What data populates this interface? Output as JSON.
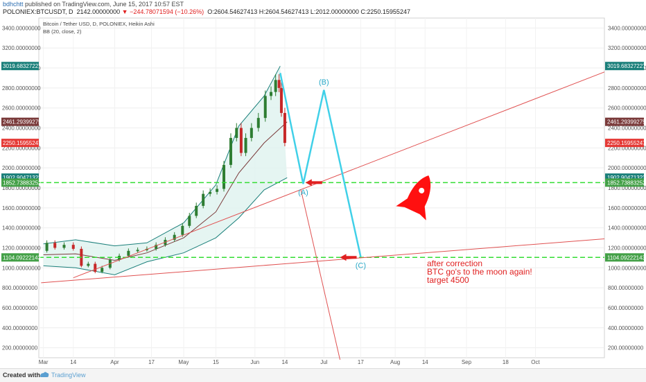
{
  "header": {
    "author": "bdhchtt",
    "published_text": "published on TradingView.com, June 15, 2017 10:57 EST",
    "symbol": "POLONIEX:BTCUSDT, D",
    "price": "2142.00000000",
    "change_arrow": "▼",
    "change": "−244.78071594 (−10.26%)",
    "ohlc": "O:2604.54627413 H:2604.54627413 L:2012.00000000 C:2250.15955247"
  },
  "chart_titles": {
    "line1": "Bitcoin / Tether USD, D, POLONIEX, Heikin Ashi",
    "line2": "BB (20, close, 2)"
  },
  "footer": {
    "created_with": "Created with",
    "brand": "TradingView"
  },
  "colors": {
    "up_candle": "#2e7d32",
    "down_candle": "#c62828",
    "band_fill": "#dff3ef",
    "band_line": "#1a7f7a",
    "basis_line": "#7a3a3a",
    "wave_line": "#40d0e8",
    "trend_line": "#e05050",
    "support_line": "#33dd33",
    "rocket": "#ff1010",
    "arrow": "#e02020"
  },
  "chart_data": {
    "type": "candlestick",
    "series_type": "Heikin Ashi",
    "indicator": "Bollinger Bands (20, close, 2)",
    "x_axis": {
      "tick_labels": [
        "Mar",
        "14",
        "Apr",
        "17",
        "May",
        "15",
        "Jun",
        "14",
        "Jul",
        "17",
        "Aug",
        "14",
        "Sep",
        "18",
        "Oct"
      ],
      "tick_dates": [
        "2017-03-01",
        "2017-03-14",
        "2017-04-01",
        "2017-04-17",
        "2017-05-01",
        "2017-05-15",
        "2017-06-01",
        "2017-06-14",
        "2017-07-01",
        "2017-07-17",
        "2017-08-01",
        "2017-08-14",
        "2017-09-01",
        "2017-09-18",
        "2017-10-01"
      ]
    },
    "y_axis": {
      "ylim": [
        100,
        3500
      ],
      "tick_labels": [
        "3400.00000000",
        "3200.00000000",
        "3000.00000000",
        "2800.00000000",
        "2600.00000000",
        "2400.00000000",
        "2200.00000000",
        "2000.00000000",
        "1800.00000000",
        "1600.00000000",
        "1400.00000000",
        "1200.00000000",
        "1000.00000000",
        "800.00000000",
        "600.00000000",
        "400.00000000",
        "200.00000000"
      ],
      "tick_values": [
        3400,
        3200,
        3000,
        2800,
        2600,
        2400,
        2200,
        2000,
        1800,
        1600,
        1400,
        1200,
        1000,
        800,
        600,
        400,
        200
      ]
    },
    "price_tags": [
      {
        "label": "3019.68327227",
        "value": 3019.68327227,
        "color": "#1a7f7a"
      },
      {
        "label": "2461.29399275",
        "value": 2461.29399275,
        "color": "#7a3a3a"
      },
      {
        "label": "2250.15955247",
        "value": 2250.15955247,
        "color": "#e53935"
      },
      {
        "label": "1902.90471323",
        "value": 1902.90471323,
        "color": "#1a7f7a"
      },
      {
        "label": "1852.73883252",
        "value": 1852.73883252,
        "color": "#43a047"
      },
      {
        "label": "1104.09222143",
        "value": 1104.09222143,
        "color": "#43a047"
      }
    ],
    "close_path": [
      [
        "2017-03-01",
        1170
      ],
      [
        "2017-03-04",
        1250
      ],
      [
        "2017-03-08",
        1200
      ],
      [
        "2017-03-12",
        1230
      ],
      [
        "2017-03-16",
        1190
      ],
      [
        "2017-03-19",
        1020
      ],
      [
        "2017-03-22",
        1040
      ],
      [
        "2017-03-25",
        960
      ],
      [
        "2017-03-28",
        1000
      ],
      [
        "2017-04-01",
        1080
      ],
      [
        "2017-04-05",
        1120
      ],
      [
        "2017-04-09",
        1170
      ],
      [
        "2017-04-13",
        1180
      ],
      [
        "2017-04-17",
        1190
      ],
      [
        "2017-04-21",
        1230
      ],
      [
        "2017-04-25",
        1280
      ],
      [
        "2017-04-29",
        1330
      ],
      [
        "2017-05-02",
        1420
      ],
      [
        "2017-05-05",
        1520
      ],
      [
        "2017-05-08",
        1620
      ],
      [
        "2017-05-11",
        1740
      ],
      [
        "2017-05-14",
        1760
      ],
      [
        "2017-05-17",
        1790
      ],
      [
        "2017-05-20",
        2030
      ],
      [
        "2017-05-23",
        2300
      ],
      [
        "2017-05-25",
        2400
      ],
      [
        "2017-05-27",
        2150
      ],
      [
        "2017-05-29",
        2300
      ],
      [
        "2017-06-01",
        2400
      ],
      [
        "2017-06-04",
        2500
      ],
      [
        "2017-06-07",
        2720
      ],
      [
        "2017-06-09",
        2760
      ],
      [
        "2017-06-11",
        2880
      ],
      [
        "2017-06-12",
        2800
      ],
      [
        "2017-06-13",
        2550
      ],
      [
        "2017-06-15",
        2250
      ]
    ],
    "bb_upper": [
      [
        "2017-03-01",
        1240
      ],
      [
        "2017-03-15",
        1280
      ],
      [
        "2017-04-01",
        1220
      ],
      [
        "2017-04-15",
        1250
      ],
      [
        "2017-05-01",
        1450
      ],
      [
        "2017-05-15",
        1830
      ],
      [
        "2017-05-25",
        2420
      ],
      [
        "2017-06-05",
        2720
      ],
      [
        "2017-06-12",
        3019
      ]
    ],
    "bb_lower": [
      [
        "2017-03-01",
        1020
      ],
      [
        "2017-03-15",
        1000
      ],
      [
        "2017-04-01",
        930
      ],
      [
        "2017-04-15",
        1060
      ],
      [
        "2017-05-01",
        1150
      ],
      [
        "2017-05-15",
        1300
      ],
      [
        "2017-05-25",
        1500
      ],
      [
        "2017-06-05",
        1780
      ],
      [
        "2017-06-15",
        1902
      ]
    ],
    "bb_basis": [
      [
        "2017-03-01",
        1130
      ],
      [
        "2017-03-15",
        1140
      ],
      [
        "2017-04-01",
        1075
      ],
      [
        "2017-04-15",
        1150
      ],
      [
        "2017-05-01",
        1300
      ],
      [
        "2017-05-15",
        1560
      ],
      [
        "2017-05-25",
        1950
      ],
      [
        "2017-06-05",
        2250
      ],
      [
        "2017-06-15",
        2461
      ]
    ],
    "annotations": {
      "support_levels": [
        1852.73883252,
        1104.09222143
      ],
      "wave_points": [
        {
          "date": "2017-06-12",
          "value": 2950,
          "label": ""
        },
        {
          "date": "2017-06-22",
          "value": 1840,
          "label": "(A)"
        },
        {
          "date": "2017-07-01",
          "value": 2780,
          "label": "(B)"
        },
        {
          "date": "2017-07-17",
          "value": 1110,
          "label": "(C)"
        }
      ],
      "trend_lines": [
        {
          "from": [
            "2017-03-14",
            900
          ],
          "to": [
            "2017-10-31",
            2960
          ]
        },
        {
          "from": [
            "2017-02-28",
            850
          ],
          "to": [
            "2017-10-31",
            1290
          ]
        },
        {
          "from": [
            "2017-06-21",
            1780
          ],
          "to": [
            "2017-07-08",
            80
          ]
        }
      ],
      "arrows": [
        {
          "date": "2017-06-23",
          "value": 1852.73883252
        },
        {
          "date": "2017-07-08",
          "value": 1104.09222143
        }
      ],
      "note_lines": [
        "after correction",
        "BTC go's to the moon again!",
        "target 4500"
      ]
    }
  }
}
